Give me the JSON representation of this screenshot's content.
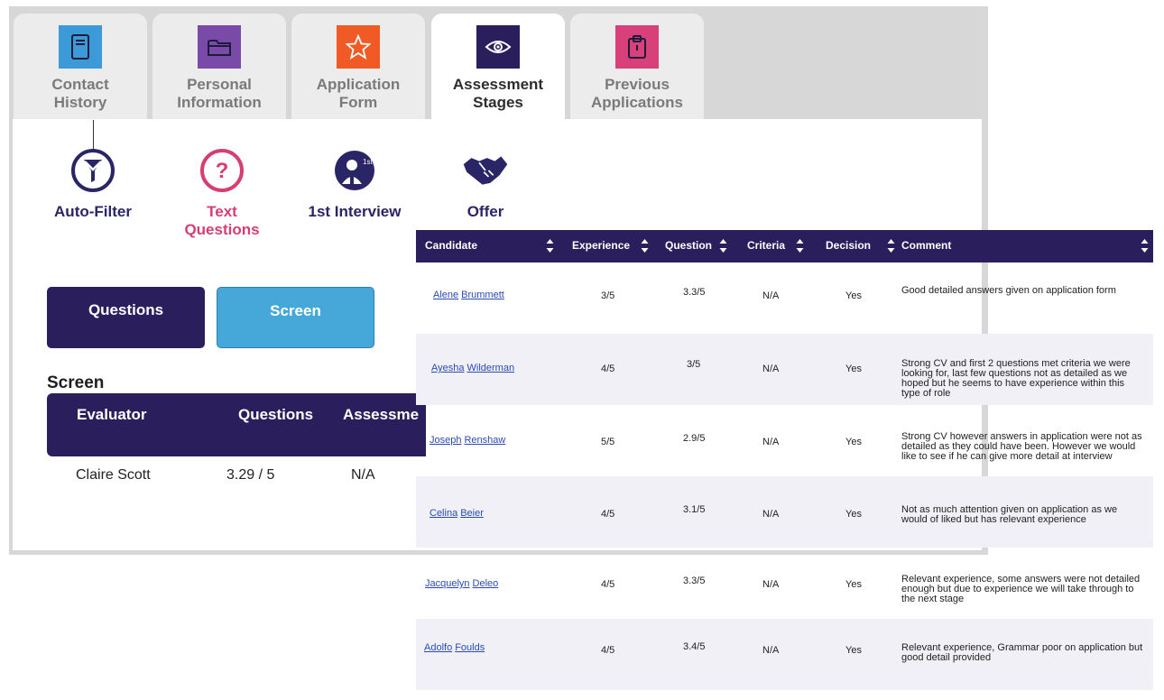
{
  "tabs": [
    {
      "label": "Contact\nHistory",
      "color": "#3d9ad8",
      "icon": "notebook-icon",
      "active": false
    },
    {
      "label": "Personal\nInformation",
      "color": "#7a4aa8",
      "icon": "folder-icon",
      "active": false
    },
    {
      "label": "Application\nForm",
      "color": "#f15a24",
      "icon": "star-icon",
      "active": false
    },
    {
      "label": "Assessment\nStages",
      "color": "#2a1f5c",
      "icon": "eye-icon",
      "active": true
    },
    {
      "label": "Previous\nApplications",
      "color": "#d8407a",
      "icon": "clipboard-icon",
      "active": false
    }
  ],
  "stages": [
    {
      "label": "Auto-Filter",
      "icon": "funnel-icon"
    },
    {
      "label": "Text\nQuestions",
      "icon": "question-icon",
      "active": true
    },
    {
      "label": "1st Interview",
      "icon": "interview-person-icon"
    },
    {
      "label": "Offer",
      "icon": "handshake-icon"
    }
  ],
  "buttons": {
    "questions": "Questions",
    "screen": "Screen"
  },
  "screen_section": {
    "title": "Screen",
    "headers": [
      "Evaluator",
      "Questions",
      "Assessme"
    ],
    "row": {
      "evaluator": "Claire Scott",
      "questions": "3.29 / 5",
      "assessment": "N/A"
    }
  },
  "candidates": {
    "headers": [
      "Candidate",
      "Experience",
      "Question",
      "Criteria",
      "Decision",
      "Comment"
    ],
    "rows": [
      {
        "first": "Alene",
        "last": "Brummett",
        "experience": "3/5",
        "question": "3.3/5",
        "criteria": "N/A",
        "decision": "Yes",
        "comment": "Good detailed answers given on application form"
      },
      {
        "first": "Ayesha",
        "last": "Wilderman",
        "experience": "4/5",
        "question": "3/5",
        "criteria": "N/A",
        "decision": "Yes",
        "comment": "Strong CV and first 2 questions met criteria we were looking for, last few questions not as detailed as we hoped but he seems to have experience within this type of role"
      },
      {
        "first": "Joseph",
        "last": "Renshaw",
        "experience": "5/5",
        "question": "2.9/5",
        "criteria": "N/A",
        "decision": "Yes",
        "comment": "Strong CV however answers in application were not as detailed as they could have been. However we would like to see if he can give more detail at interview"
      },
      {
        "first": "Celina",
        "last": "Beier",
        "experience": "4/5",
        "question": "3.1/5",
        "criteria": "N/A",
        "decision": "Yes",
        "comment": "Not as much attention given on application as we would of liked but has relevant experience"
      },
      {
        "first": "Jacquelyn",
        "last": "Deleo",
        "experience": "4/5",
        "question": "3.3/5",
        "criteria": "N/A",
        "decision": "Yes",
        "comment": "Relevant experience, some answers were not detailed enough but due to experience we will take through to the next stage"
      },
      {
        "first": "Adolfo",
        "last": "Foulds",
        "experience": "4/5",
        "question": "3.4/5",
        "criteria": "N/A",
        "decision": "Yes",
        "comment": "Relevant experience, Grammar poor on application but good detail provided"
      }
    ]
  }
}
